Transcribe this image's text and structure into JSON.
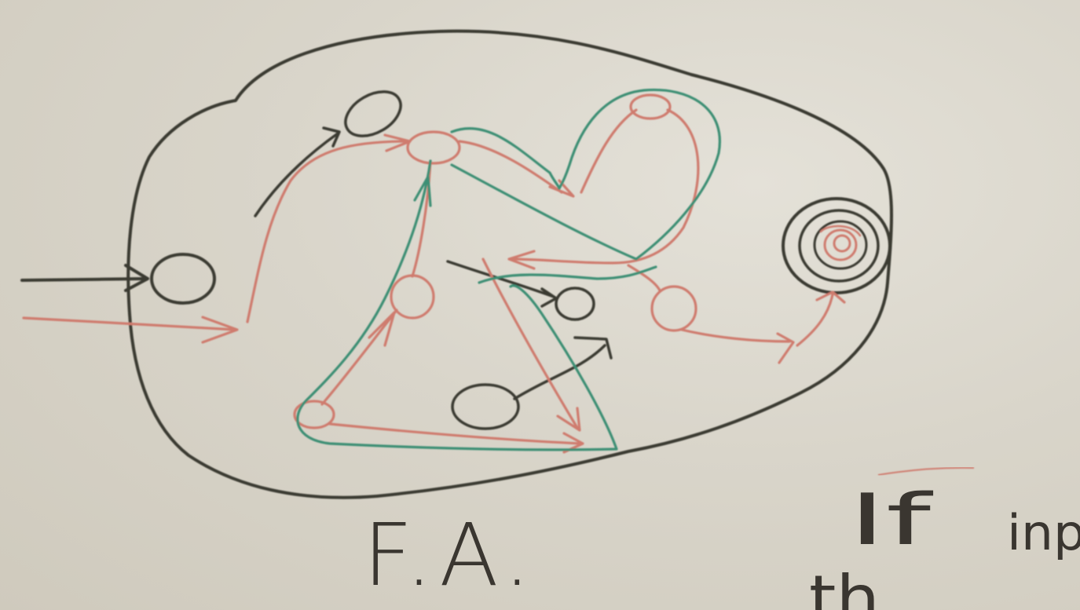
{
  "board": {
    "title": "F.A.",
    "side_note_word1": "If",
    "side_note_word2": "inp",
    "side_note_word3": "th"
  },
  "colors": {
    "whiteboard": "#d9d5ca",
    "black_marker": "#3b3a32",
    "red_marker": "#cf7b6e",
    "green_marker": "#3d8f74"
  },
  "diagram": {
    "state_count": 9,
    "final_state_count": 1,
    "paths": [
      "red-path",
      "green-path"
    ]
  }
}
